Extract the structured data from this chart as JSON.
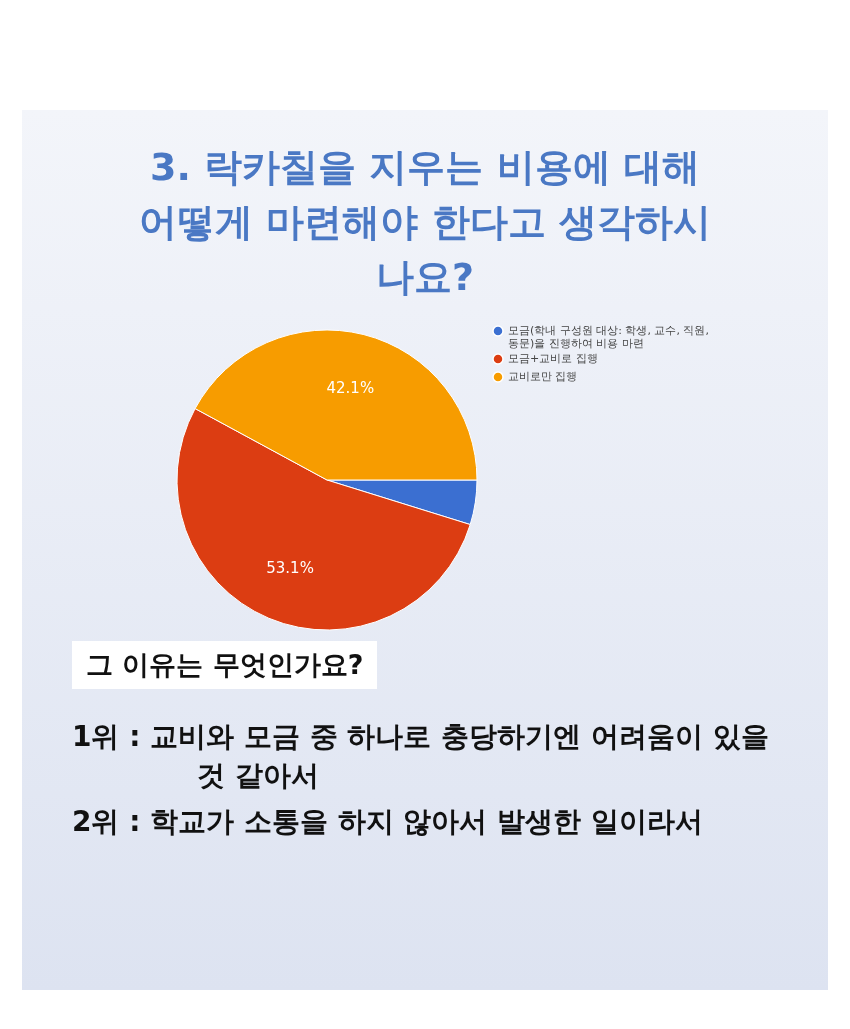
{
  "chart_data": {
    "type": "pie",
    "title": "3. 락카칠을 지우는 비용에 대해 어떻게 마련해야 한다고 생각하시나요?",
    "categories": [
      "모금(학내 구성원 대상: 학생, 교수, 직원, 동문)을 진행하여 비용 마련",
      "모금+교비로 집행",
      "교비로만 집행"
    ],
    "values": [
      4.8,
      53.1,
      42.1
    ],
    "colors": [
      "#3b6fd1",
      "#dc3d12",
      "#f79c00"
    ],
    "value_labels": [
      null,
      "53.1%",
      "42.1%"
    ],
    "legend": "right",
    "annotations": [
      "그 이유는 무엇인가요?",
      "1위 : 교비와 모금 중 하나로 충당하기엔 어려움이 있을 것 같아서",
      "2위 : 학교가 소통을 하지 않아서 발생한 일이라서"
    ]
  }
}
